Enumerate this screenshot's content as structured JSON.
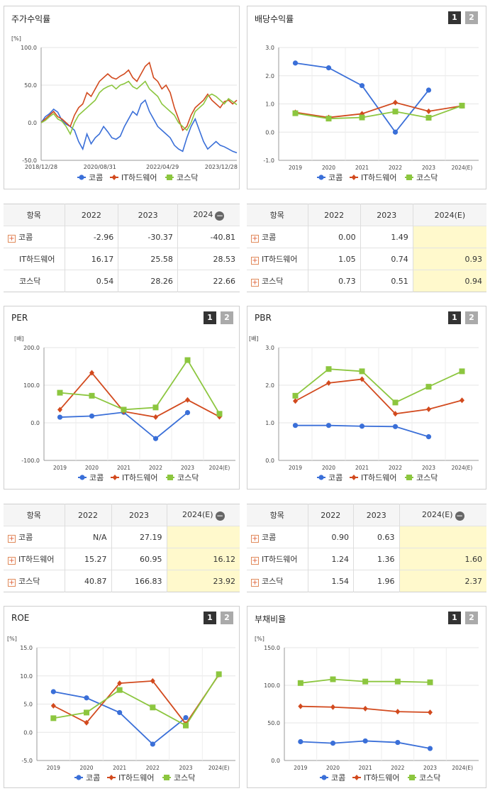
{
  "colors": {
    "komcom": "#3a6fd8",
    "ithw": "#d24a1e",
    "kosdaq": "#8cc63f"
  },
  "legend": [
    "코콤",
    "IT하드웨어",
    "코스닥"
  ],
  "panels": {
    "stock": {
      "title": "주가수익률"
    },
    "dividend": {
      "title": "배당수익률",
      "t1": "1",
      "t2": "2"
    },
    "per": {
      "title": "PER",
      "t1": "1",
      "t2": "2"
    },
    "pbr": {
      "title": "PBR",
      "t1": "1",
      "t2": "2"
    },
    "roe": {
      "title": "ROE",
      "t1": "1",
      "t2": "2"
    },
    "debt": {
      "title": "부채비율",
      "t1": "1",
      "t2": "2"
    }
  },
  "chart_data": [
    {
      "id": "stock",
      "type": "line",
      "unit": "[%]",
      "yticks": [
        "100.0",
        "50.0",
        "0.0",
        "-50.0"
      ],
      "ylim": [
        -50,
        100
      ],
      "xticks": [
        "2018/12/28",
        "2020/08/31",
        "2022/04/29",
        "2023/12/28"
      ],
      "series": [
        {
          "name": "코콤",
          "values": [
            0,
            8,
            12,
            18,
            14,
            3,
            -2,
            -5,
            -10,
            -25,
            -35,
            -15,
            -28,
            -20,
            -15,
            -5,
            -12,
            -20,
            -22,
            -18,
            -5,
            5,
            15,
            10,
            25,
            30,
            15,
            5,
            -5,
            -10,
            -15,
            -20,
            -30,
            -35,
            -38,
            -20,
            -5,
            5,
            -10,
            -25,
            -35,
            -30,
            -25,
            -30,
            -32,
            -35,
            -38,
            -40
          ]
        },
        {
          "name": "IT하드웨어",
          "values": [
            0,
            5,
            10,
            15,
            8,
            5,
            0,
            -5,
            10,
            20,
            25,
            40,
            35,
            45,
            55,
            60,
            65,
            60,
            58,
            62,
            65,
            70,
            60,
            55,
            65,
            75,
            80,
            60,
            55,
            45,
            50,
            40,
            20,
            5,
            -10,
            -5,
            10,
            20,
            25,
            30,
            38,
            30,
            25,
            20,
            28,
            30,
            25,
            30
          ]
        },
        {
          "name": "코스닥",
          "values": [
            0,
            3,
            8,
            12,
            5,
            2,
            -5,
            -15,
            0,
            10,
            15,
            20,
            25,
            30,
            40,
            45,
            48,
            50,
            45,
            50,
            52,
            55,
            48,
            45,
            50,
            55,
            45,
            40,
            35,
            25,
            20,
            15,
            10,
            0,
            -5,
            -10,
            0,
            15,
            20,
            25,
            35,
            38,
            35,
            30,
            25,
            32,
            28,
            24
          ]
        }
      ]
    },
    {
      "id": "dividend",
      "type": "line",
      "unit": "",
      "yticks": [
        "3.0",
        "2.0",
        "1.0",
        "0.0",
        "-1.0"
      ],
      "ylim": [
        -1,
        3
      ],
      "categories": [
        "2019",
        "2020",
        "2021",
        "2022",
        "2023",
        "2024(E)"
      ],
      "series": [
        {
          "name": "코콤",
          "values": [
            2.45,
            2.28,
            1.65,
            0.0,
            1.49,
            null
          ]
        },
        {
          "name": "IT하드웨어",
          "values": [
            0.7,
            0.52,
            0.65,
            1.05,
            0.74,
            0.93
          ]
        },
        {
          "name": "코스닥",
          "values": [
            0.67,
            0.48,
            0.52,
            0.73,
            0.51,
            0.94
          ]
        }
      ]
    },
    {
      "id": "per",
      "type": "line",
      "unit": "[배]",
      "yticks": [
        "200.0",
        "100.0",
        "0.0",
        "-100.0"
      ],
      "ylim": [
        -100,
        200
      ],
      "categories": [
        "2019",
        "2020",
        "2021",
        "2022",
        "2023",
        "2024(E)"
      ],
      "series": [
        {
          "name": "코콤",
          "values": [
            15,
            18,
            28,
            -42,
            27.19,
            null
          ]
        },
        {
          "name": "IT하드웨어",
          "values": [
            35,
            133,
            30,
            15.27,
            60.95,
            16.12
          ]
        },
        {
          "name": "코스닥",
          "values": [
            80,
            72,
            35,
            40.87,
            166.83,
            23.92
          ]
        }
      ]
    },
    {
      "id": "pbr",
      "type": "line",
      "unit": "[배]",
      "yticks": [
        "3.0",
        "2.0",
        "1.0",
        "0.0"
      ],
      "ylim": [
        0,
        3
      ],
      "categories": [
        "2019",
        "2020",
        "2021",
        "2022",
        "2023",
        "2024(E)"
      ],
      "series": [
        {
          "name": "코콤",
          "values": [
            0.93,
            0.93,
            0.91,
            0.9,
            0.63,
            null
          ]
        },
        {
          "name": "IT하드웨어",
          "values": [
            1.58,
            2.06,
            2.16,
            1.24,
            1.36,
            1.6
          ]
        },
        {
          "name": "코스닥",
          "values": [
            1.72,
            2.43,
            2.37,
            1.54,
            1.96,
            2.37
          ]
        }
      ]
    },
    {
      "id": "roe",
      "type": "line",
      "unit": "[%]",
      "yticks": [
        "15.0",
        "10.0",
        "5.0",
        "0.0",
        "-5.0"
      ],
      "ylim": [
        -5,
        15
      ],
      "categories": [
        "2019",
        "2020",
        "2021",
        "2022",
        "2023",
        "2024(E)"
      ],
      "series": [
        {
          "name": "코콤",
          "values": [
            7.2,
            6.1,
            3.5,
            -2.1,
            2.6,
            null
          ]
        },
        {
          "name": "IT하드웨어",
          "values": [
            4.7,
            1.7,
            8.7,
            9.1,
            1.5,
            10.2
          ]
        },
        {
          "name": "코스닥",
          "values": [
            2.5,
            3.5,
            7.5,
            4.4,
            1.2,
            10.3
          ]
        }
      ]
    },
    {
      "id": "debt",
      "type": "line",
      "unit": "[%]",
      "yticks": [
        "150.0",
        "100.0",
        "50.0",
        "0.0"
      ],
      "ylim": [
        0,
        150
      ],
      "categories": [
        "2019",
        "2020",
        "2021",
        "2022",
        "2023",
        "2024(E)"
      ],
      "series": [
        {
          "name": "코콤",
          "values": [
            25,
            23,
            26,
            24,
            16,
            null
          ]
        },
        {
          "name": "IT하드웨어",
          "values": [
            72,
            71,
            69,
            65,
            64,
            null
          ]
        },
        {
          "name": "코스닥",
          "values": [
            103,
            108,
            105,
            105,
            104,
            null
          ]
        }
      ]
    }
  ],
  "tables": {
    "stock": {
      "headers": [
        "항목",
        "2022",
        "2023",
        "2024"
      ],
      "rows": [
        {
          "label": "코콤",
          "plus": true,
          "values": [
            "-2.96",
            "-30.37",
            "-40.81"
          ]
        },
        {
          "label": "IT하드웨어",
          "plus": false,
          "values": [
            "16.17",
            "25.58",
            "28.53"
          ]
        },
        {
          "label": "코스닥",
          "plus": false,
          "values": [
            "0.54",
            "28.26",
            "22.66"
          ]
        }
      ]
    },
    "dividend": {
      "headers": [
        "항목",
        "2022",
        "2023",
        "2024(E)"
      ],
      "rows": [
        {
          "label": "코콤",
          "plus": true,
          "values": [
            "0.00",
            "1.49",
            ""
          ]
        },
        {
          "label": "IT하드웨어",
          "plus": true,
          "values": [
            "1.05",
            "0.74",
            "0.93"
          ]
        },
        {
          "label": "코스닥",
          "plus": true,
          "values": [
            "0.73",
            "0.51",
            "0.94"
          ]
        }
      ]
    },
    "per": {
      "headers": [
        "항목",
        "2022",
        "2023",
        "2024(E)"
      ],
      "rows": [
        {
          "label": "코콤",
          "plus": true,
          "values": [
            "N/A",
            "27.19",
            ""
          ]
        },
        {
          "label": "IT하드웨어",
          "plus": true,
          "values": [
            "15.27",
            "60.95",
            "16.12"
          ]
        },
        {
          "label": "코스닥",
          "plus": true,
          "values": [
            "40.87",
            "166.83",
            "23.92"
          ]
        }
      ]
    },
    "pbr": {
      "headers": [
        "항목",
        "2022",
        "2023",
        "2024(E)"
      ],
      "rows": [
        {
          "label": "코콤",
          "plus": true,
          "values": [
            "0.90",
            "0.63",
            ""
          ]
        },
        {
          "label": "IT하드웨어",
          "plus": true,
          "values": [
            "1.24",
            "1.36",
            "1.60"
          ]
        },
        {
          "label": "코스닥",
          "plus": true,
          "values": [
            "1.54",
            "1.96",
            "2.37"
          ]
        }
      ]
    }
  }
}
